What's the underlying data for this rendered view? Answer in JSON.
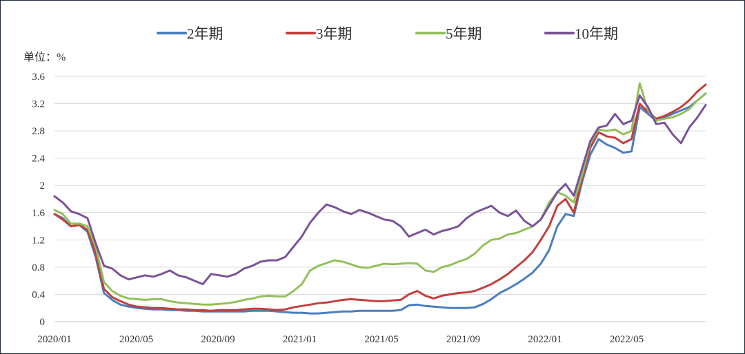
{
  "chart_data": {
    "type": "line",
    "unit_label": "单位：%",
    "ylim": [
      0,
      3.6
    ],
    "y_ticks": [
      "0",
      "0.4",
      "0.8",
      "1.2",
      "1.6",
      "2",
      "2.4",
      "2.8",
      "3.2",
      "3.6"
    ],
    "x_ticks": [
      "2020/01",
      "2020/05",
      "2020/09",
      "2021/01",
      "2021/05",
      "2021/09",
      "2022/01",
      "2022/05"
    ],
    "grid": true,
    "legend_position": "top",
    "series": [
      {
        "name": "2年期",
        "color": "#4a7ebf",
        "values": [
          1.58,
          1.52,
          1.4,
          1.42,
          1.32,
          0.95,
          0.42,
          0.32,
          0.25,
          0.22,
          0.2,
          0.19,
          0.18,
          0.18,
          0.17,
          0.17,
          0.16,
          0.16,
          0.15,
          0.15,
          0.15,
          0.15,
          0.15,
          0.15,
          0.16,
          0.16,
          0.16,
          0.15,
          0.14,
          0.13,
          0.13,
          0.12,
          0.12,
          0.13,
          0.14,
          0.15,
          0.15,
          0.16,
          0.16,
          0.16,
          0.16,
          0.16,
          0.17,
          0.24,
          0.25,
          0.23,
          0.22,
          0.21,
          0.2,
          0.2,
          0.2,
          0.21,
          0.26,
          0.33,
          0.42,
          0.48,
          0.55,
          0.63,
          0.72,
          0.85,
          1.05,
          1.4,
          1.58,
          1.55,
          2.05,
          2.45,
          2.68,
          2.6,
          2.55,
          2.48,
          2.5,
          3.15,
          3.05,
          2.95,
          3.0,
          3.05,
          3.1,
          3.15,
          3.25,
          3.35
        ]
      },
      {
        "name": "3年期",
        "color": "#c0403c",
        "values": [
          1.58,
          1.5,
          1.4,
          1.42,
          1.35,
          1.0,
          0.48,
          0.36,
          0.3,
          0.25,
          0.22,
          0.21,
          0.2,
          0.2,
          0.19,
          0.18,
          0.18,
          0.17,
          0.17,
          0.16,
          0.17,
          0.17,
          0.17,
          0.18,
          0.19,
          0.19,
          0.18,
          0.17,
          0.18,
          0.21,
          0.23,
          0.25,
          0.27,
          0.28,
          0.3,
          0.32,
          0.33,
          0.32,
          0.31,
          0.3,
          0.3,
          0.31,
          0.32,
          0.4,
          0.45,
          0.38,
          0.34,
          0.38,
          0.4,
          0.42,
          0.43,
          0.45,
          0.5,
          0.55,
          0.62,
          0.7,
          0.8,
          0.9,
          1.02,
          1.2,
          1.4,
          1.7,
          1.8,
          1.6,
          2.1,
          2.55,
          2.78,
          2.72,
          2.7,
          2.62,
          2.68,
          3.2,
          3.08,
          2.98,
          3.02,
          3.08,
          3.15,
          3.25,
          3.38,
          3.48
        ]
      },
      {
        "name": "5年期",
        "color": "#92c05a",
        "values": [
          1.64,
          1.58,
          1.44,
          1.44,
          1.4,
          1.1,
          0.58,
          0.45,
          0.38,
          0.34,
          0.33,
          0.32,
          0.33,
          0.33,
          0.3,
          0.28,
          0.27,
          0.26,
          0.25,
          0.25,
          0.26,
          0.27,
          0.29,
          0.32,
          0.34,
          0.37,
          0.38,
          0.37,
          0.37,
          0.45,
          0.55,
          0.75,
          0.82,
          0.86,
          0.9,
          0.88,
          0.84,
          0.8,
          0.79,
          0.82,
          0.85,
          0.84,
          0.85,
          0.86,
          0.85,
          0.75,
          0.73,
          0.8,
          0.83,
          0.88,
          0.92,
          1.0,
          1.12,
          1.2,
          1.22,
          1.28,
          1.3,
          1.35,
          1.4,
          1.5,
          1.75,
          1.9,
          1.85,
          1.75,
          2.15,
          2.62,
          2.82,
          2.8,
          2.82,
          2.75,
          2.8,
          3.5,
          3.1,
          2.95,
          2.98,
          3.0,
          3.05,
          3.12,
          3.25,
          3.35
        ]
      },
      {
        "name": "10年期",
        "color": "#7a529a",
        "values": [
          1.84,
          1.75,
          1.62,
          1.58,
          1.52,
          1.15,
          0.82,
          0.78,
          0.68,
          0.62,
          0.65,
          0.68,
          0.66,
          0.7,
          0.75,
          0.68,
          0.65,
          0.6,
          0.55,
          0.7,
          0.68,
          0.66,
          0.7,
          0.78,
          0.82,
          0.88,
          0.9,
          0.9,
          0.95,
          1.1,
          1.25,
          1.45,
          1.6,
          1.72,
          1.68,
          1.62,
          1.58,
          1.64,
          1.6,
          1.55,
          1.5,
          1.48,
          1.4,
          1.25,
          1.3,
          1.35,
          1.28,
          1.33,
          1.36,
          1.4,
          1.52,
          1.6,
          1.65,
          1.7,
          1.6,
          1.55,
          1.63,
          1.48,
          1.4,
          1.5,
          1.7,
          1.9,
          2.02,
          1.85,
          2.25,
          2.65,
          2.85,
          2.88,
          3.05,
          2.9,
          2.95,
          3.32,
          3.15,
          2.9,
          2.92,
          2.75,
          2.62,
          2.85,
          3.0,
          3.18
        ]
      }
    ]
  }
}
